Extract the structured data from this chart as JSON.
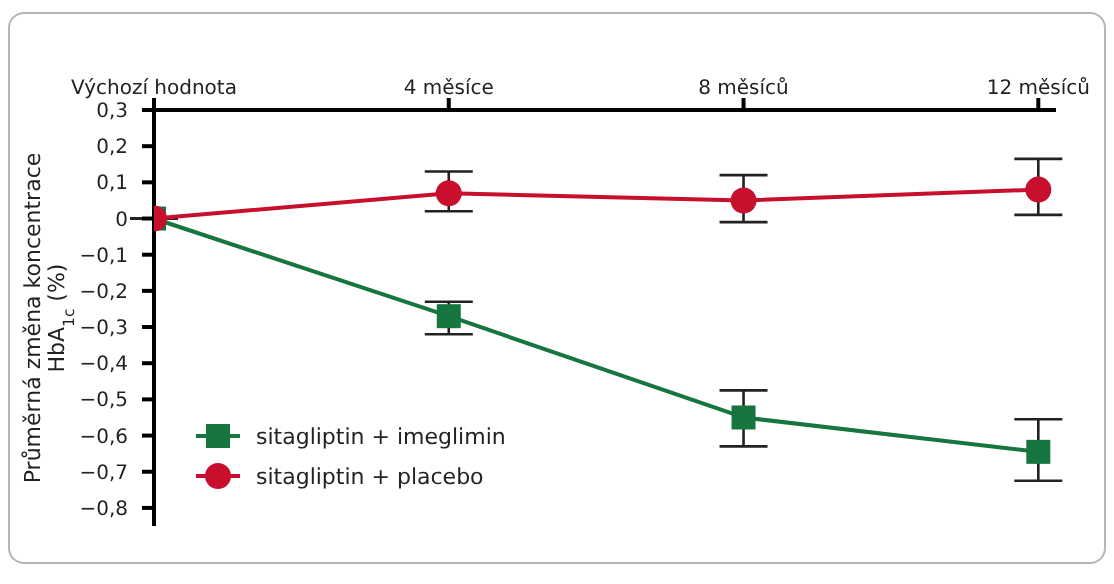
{
  "chart_data": {
    "type": "line",
    "ylabel": "Průměrná změna koncentrace\nHbA$_{1c}$ (%)",
    "categories": [
      "Výchozí hodnota",
      "4 měsíce",
      "8 měsíců",
      "12 měsíců"
    ],
    "series": [
      {
        "name": "sitagliptin + imeglimin",
        "color": "#17753f",
        "marker": "square",
        "values": [
          0,
          -0.27,
          -0.55,
          -0.645
        ],
        "errors": [
          null,
          [
            -0.32,
            -0.23
          ],
          [
            -0.63,
            -0.475
          ],
          [
            -0.725,
            -0.555
          ]
        ]
      },
      {
        "name": "sitagliptin + placebo",
        "color": "#c8102e",
        "marker": "circle",
        "values": [
          0,
          0.07,
          0.05,
          0.08
        ],
        "errors": [
          null,
          [
            0.02,
            0.13
          ],
          [
            -0.01,
            0.12
          ],
          [
            0.01,
            0.165
          ]
        ]
      }
    ],
    "ylim": [
      -0.85,
      0.3
    ],
    "yticks": [
      {
        "value": -0.8,
        "label": "−0,8"
      },
      {
        "value": -0.7,
        "label": "−0,7"
      },
      {
        "value": -0.6,
        "label": "−0,6"
      },
      {
        "value": -0.5,
        "label": "−0,5"
      },
      {
        "value": -0.4,
        "label": "−0,4"
      },
      {
        "value": -0.3,
        "label": "−0,3"
      },
      {
        "value": -0.2,
        "label": "−0,2"
      },
      {
        "value": -0.1,
        "label": "−0,1"
      },
      0,
      {
        "value": 0.1,
        "label": "0,1"
      },
      {
        "value": 0.2,
        "label": "0,2"
      },
      {
        "value": 0.3,
        "label": "0,3"
      }
    ],
    "legend": "bottom left"
  }
}
